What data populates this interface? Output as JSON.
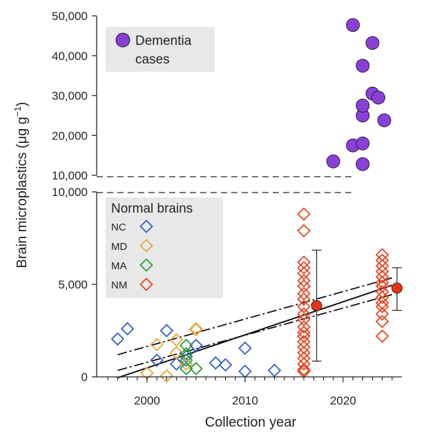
{
  "chart_data": {
    "type": "scatter",
    "xlabel": "Collection year",
    "ylabel": "Brain microplastics (μg g",
    "ylabel_sup": "−1",
    "ylabel_close": ")",
    "x_ticks": [
      {
        "value": 2000,
        "label": "2000"
      },
      {
        "value": 2010,
        "label": "2010"
      },
      {
        "value": 2020,
        "label": "2020"
      }
    ],
    "xlim": [
      1995.5,
      2026
    ],
    "upper_panel": {
      "ylim": [
        10000,
        50000
      ],
      "ticks": [
        {
          "value": 50000,
          "label": "50,000"
        },
        {
          "value": 40000,
          "label": "40,000"
        },
        {
          "value": 30000,
          "label": "30,000"
        },
        {
          "value": 20000,
          "label": "20,000"
        },
        {
          "value": 10000,
          "label": "10,000"
        }
      ],
      "legend": {
        "marker_color": "#8b3fd9",
        "label_line1": "Dementia",
        "label_line2": "cases"
      },
      "series": [
        {
          "group": "dementia",
          "color": "#8b3fd9",
          "points": [
            [
              2019,
              13500
            ],
            [
              2021,
              17500
            ],
            [
              2021,
              47700
            ],
            [
              2022,
              12800
            ],
            [
              2022,
              18000
            ],
            [
              2022,
              25000
            ],
            [
              2022,
              27500
            ],
            [
              2022,
              37500
            ],
            [
              2023,
              30500
            ],
            [
              2023,
              43200
            ],
            [
              2023.6,
              29500
            ],
            [
              2024.2,
              23800
            ]
          ]
        }
      ]
    },
    "lower_panel": {
      "ylim": [
        0,
        10000
      ],
      "ticks": [
        {
          "value": 10000,
          "label": "10,000"
        },
        {
          "value": 5000,
          "label": "5,000"
        },
        {
          "value": 0,
          "label": "0"
        }
      ],
      "legend": {
        "title": "Normal brains",
        "entries": [
          {
            "key": "NC",
            "color": "#2f5fc4"
          },
          {
            "key": "MD",
            "color": "#e8a33a"
          },
          {
            "key": "MA",
            "color": "#2e9a3a"
          },
          {
            "key": "NM",
            "color": "#e8431f"
          }
        ]
      },
      "series": [
        {
          "name": "NC",
          "color": "#2f5fc4",
          "points": [
            [
              1997,
              2050
            ],
            [
              1998,
              2600
            ],
            [
              2001,
              900
            ],
            [
              2002,
              2500
            ],
            [
              2003,
              700
            ],
            [
              2004,
              1100
            ],
            [
              2005,
              1700
            ],
            [
              2007,
              750
            ],
            [
              2008,
              650
            ],
            [
              2010,
              300
            ],
            [
              2010,
              1550
            ],
            [
              2013,
              350
            ]
          ]
        },
        {
          "name": "MD",
          "color": "#e8a33a",
          "points": [
            [
              2000,
              200
            ],
            [
              2001,
              1750
            ],
            [
              2002,
              50
            ],
            [
              2003,
              1300
            ],
            [
              2003,
              2000
            ],
            [
              2004,
              700
            ],
            [
              2005,
              2550
            ],
            [
              2005,
              2600
            ]
          ]
        },
        {
          "name": "MA",
          "color": "#2e9a3a",
          "points": [
            [
              2004,
              1700
            ],
            [
              2004,
              1250
            ],
            [
              2004,
              900
            ],
            [
              2004,
              450
            ],
            [
              2005,
              450
            ]
          ]
        },
        {
          "name": "NM",
          "color": "#e8431f",
          "points": [
            [
              2016,
              8800
            ],
            [
              2016,
              7900
            ],
            [
              2016,
              6200
            ],
            [
              2016,
              5900
            ],
            [
              2016,
              5600
            ],
            [
              2016,
              5200
            ],
            [
              2016,
              4900
            ],
            [
              2016,
              4500
            ],
            [
              2016,
              4200
            ],
            [
              2016,
              3800
            ],
            [
              2016,
              3400
            ],
            [
              2016,
              3100
            ],
            [
              2016,
              2700
            ],
            [
              2016,
              2400
            ],
            [
              2016,
              2200
            ],
            [
              2016,
              1900
            ],
            [
              2016,
              1600
            ],
            [
              2016,
              1300
            ],
            [
              2016,
              1000
            ],
            [
              2016,
              700
            ],
            [
              2016,
              400
            ],
            [
              2016,
              300
            ],
            [
              2024,
              6600
            ],
            [
              2024,
              6300
            ],
            [
              2024,
              6000
            ],
            [
              2024,
              5700
            ],
            [
              2024,
              5400
            ],
            [
              2024,
              5100
            ],
            [
              2024,
              4900
            ],
            [
              2024,
              4600
            ],
            [
              2024,
              4300
            ],
            [
              2024,
              4000
            ],
            [
              2024,
              3800
            ],
            [
              2024,
              3400
            ],
            [
              2024,
              3000
            ],
            [
              2024,
              2200
            ]
          ]
        }
      ],
      "means": [
        {
          "x": 2017.3,
          "y": 3850,
          "err_low": 850,
          "err_high": 6850,
          "color": "#e8311a"
        },
        {
          "x": 2025.5,
          "y": 4800,
          "err_low": 3600,
          "err_high": 5900,
          "color": "#e8311a"
        }
      ],
      "fit": {
        "x": [
          1997,
          2025
        ],
        "center_y": [
          -50,
          4950
        ],
        "upper_y": [
          1200,
          5350
        ],
        "lower_y": [
          350,
          4450
        ]
      }
    }
  }
}
